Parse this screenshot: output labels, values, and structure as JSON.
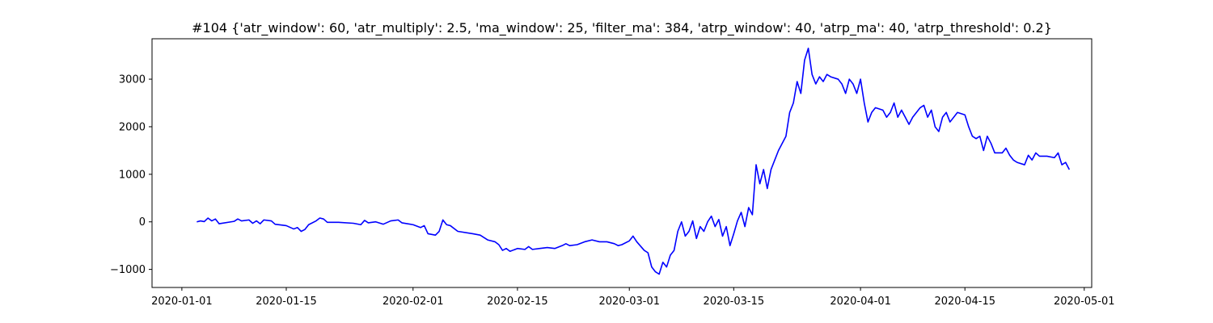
{
  "chart_data": {
    "type": "line",
    "title": "#104 {'atr_window': 60, 'atr_multiply': 2.5, 'ma_window': 25, 'filter_ma': 384, 'atrp_window': 40, 'atrp_ma': 40, 'atrp_threshold': 0.2}",
    "xlabel": "",
    "ylabel": "",
    "grid": false,
    "legend": "none",
    "xlim": [
      "2019-12-28",
      "2020-05-02"
    ],
    "ylim": [
      -1380,
      3850
    ],
    "x_ticks": [
      "2020-01-01",
      "2020-01-15",
      "2020-02-01",
      "2020-02-15",
      "2020-03-01",
      "2020-03-15",
      "2020-04-01",
      "2020-04-15",
      "2020-05-01"
    ],
    "y_ticks": [
      -1000,
      0,
      1000,
      2000,
      3000
    ],
    "series": [
      {
        "color": "#0000ff",
        "points": [
          [
            "2020-01-03",
            0
          ],
          [
            "2020-01-03T12:00",
            20
          ],
          [
            "2020-01-04",
            5
          ],
          [
            "2020-01-04T12:00",
            80
          ],
          [
            "2020-01-05",
            20
          ],
          [
            "2020-01-05T12:00",
            60
          ],
          [
            "2020-01-06",
            -40
          ],
          [
            "2020-01-08",
            10
          ],
          [
            "2020-01-08T12:00",
            60
          ],
          [
            "2020-01-09",
            20
          ],
          [
            "2020-01-10",
            40
          ],
          [
            "2020-01-10T12:00",
            -30
          ],
          [
            "2020-01-11",
            20
          ],
          [
            "2020-01-11T12:00",
            -40
          ],
          [
            "2020-01-12",
            40
          ],
          [
            "2020-01-13",
            20
          ],
          [
            "2020-01-13T12:00",
            -50
          ],
          [
            "2020-01-15",
            -80
          ],
          [
            "2020-01-16",
            -150
          ],
          [
            "2020-01-16T12:00",
            -120
          ],
          [
            "2020-01-17",
            -200
          ],
          [
            "2020-01-17T12:00",
            -160
          ],
          [
            "2020-01-18",
            -60
          ],
          [
            "2020-01-19",
            20
          ],
          [
            "2020-01-19T12:00",
            80
          ],
          [
            "2020-01-20",
            60
          ],
          [
            "2020-01-20T12:00",
            -10
          ],
          [
            "2020-01-22",
            -10
          ],
          [
            "2020-01-24",
            -30
          ],
          [
            "2020-01-25",
            -60
          ],
          [
            "2020-01-25T12:00",
            30
          ],
          [
            "2020-01-26",
            -20
          ],
          [
            "2020-01-27",
            0
          ],
          [
            "2020-01-28",
            -50
          ],
          [
            "2020-01-29",
            20
          ],
          [
            "2020-01-30",
            40
          ],
          [
            "2020-01-30T12:00",
            -20
          ],
          [
            "2020-02-01",
            -60
          ],
          [
            "2020-02-02",
            -120
          ],
          [
            "2020-02-02T12:00",
            -80
          ],
          [
            "2020-02-03",
            -250
          ],
          [
            "2020-02-04",
            -280
          ],
          [
            "2020-02-04T12:00",
            -200
          ],
          [
            "2020-02-05",
            40
          ],
          [
            "2020-02-05T12:00",
            -60
          ],
          [
            "2020-02-06",
            -80
          ],
          [
            "2020-02-07",
            -200
          ],
          [
            "2020-02-09",
            -250
          ],
          [
            "2020-02-10",
            -280
          ],
          [
            "2020-02-11",
            -380
          ],
          [
            "2020-02-12",
            -420
          ],
          [
            "2020-02-12T12:00",
            -480
          ],
          [
            "2020-02-13",
            -600
          ],
          [
            "2020-02-13T12:00",
            -560
          ],
          [
            "2020-02-14",
            -620
          ],
          [
            "2020-02-15",
            -560
          ],
          [
            "2020-02-16",
            -580
          ],
          [
            "2020-02-16T12:00",
            -520
          ],
          [
            "2020-02-17",
            -580
          ],
          [
            "2020-02-18",
            -560
          ],
          [
            "2020-02-19",
            -540
          ],
          [
            "2020-02-20",
            -560
          ],
          [
            "2020-02-21",
            -500
          ],
          [
            "2020-02-21T12:00",
            -460
          ],
          [
            "2020-02-22",
            -500
          ],
          [
            "2020-02-23",
            -480
          ],
          [
            "2020-02-24",
            -420
          ],
          [
            "2020-02-25",
            -380
          ],
          [
            "2020-02-26",
            -420
          ],
          [
            "2020-02-27",
            -420
          ],
          [
            "2020-02-28",
            -460
          ],
          [
            "2020-02-28T12:00",
            -500
          ],
          [
            "2020-02-29",
            -480
          ],
          [
            "2020-03-01",
            -400
          ],
          [
            "2020-03-01T12:00",
            -300
          ],
          [
            "2020-03-02",
            -420
          ],
          [
            "2020-03-03",
            -600
          ],
          [
            "2020-03-03T12:00",
            -650
          ],
          [
            "2020-03-04",
            -950
          ],
          [
            "2020-03-04T12:00",
            -1050
          ],
          [
            "2020-03-05",
            -1100
          ],
          [
            "2020-03-05T12:00",
            -850
          ],
          [
            "2020-03-06",
            -950
          ],
          [
            "2020-03-06T12:00",
            -700
          ],
          [
            "2020-03-07",
            -600
          ],
          [
            "2020-03-07T12:00",
            -200
          ],
          [
            "2020-03-08",
            0
          ],
          [
            "2020-03-08T12:00",
            -300
          ],
          [
            "2020-03-09",
            -200
          ],
          [
            "2020-03-09T12:00",
            20
          ],
          [
            "2020-03-10",
            -350
          ],
          [
            "2020-03-10T12:00",
            -100
          ],
          [
            "2020-03-11",
            -200
          ],
          [
            "2020-03-11T12:00",
            0
          ],
          [
            "2020-03-12",
            120
          ],
          [
            "2020-03-12T12:00",
            -100
          ],
          [
            "2020-03-13",
            50
          ],
          [
            "2020-03-13T12:00",
            -300
          ],
          [
            "2020-03-14",
            -100
          ],
          [
            "2020-03-14T12:00",
            -500
          ],
          [
            "2020-03-15",
            -250
          ],
          [
            "2020-03-15T12:00",
            20
          ],
          [
            "2020-03-16",
            200
          ],
          [
            "2020-03-16T12:00",
            -100
          ],
          [
            "2020-03-17",
            300
          ],
          [
            "2020-03-17T12:00",
            150
          ],
          [
            "2020-03-18",
            1200
          ],
          [
            "2020-03-18T12:00",
            800
          ],
          [
            "2020-03-19",
            1100
          ],
          [
            "2020-03-19T12:00",
            700
          ],
          [
            "2020-03-20",
            1100
          ],
          [
            "2020-03-21",
            1500
          ],
          [
            "2020-03-22",
            1800
          ],
          [
            "2020-03-22T12:00",
            2300
          ],
          [
            "2020-03-23",
            2500
          ],
          [
            "2020-03-23T12:00",
            2950
          ],
          [
            "2020-03-24",
            2700
          ],
          [
            "2020-03-24T12:00",
            3400
          ],
          [
            "2020-03-25",
            3650
          ],
          [
            "2020-03-25T12:00",
            3100
          ],
          [
            "2020-03-26",
            2900
          ],
          [
            "2020-03-26T12:00",
            3050
          ],
          [
            "2020-03-27",
            2950
          ],
          [
            "2020-03-27T12:00",
            3100
          ],
          [
            "2020-03-28",
            3050
          ],
          [
            "2020-03-29",
            3000
          ],
          [
            "2020-03-29T12:00",
            2900
          ],
          [
            "2020-03-30",
            2700
          ],
          [
            "2020-03-30T12:00",
            3000
          ],
          [
            "2020-03-31",
            2900
          ],
          [
            "2020-03-31T12:00",
            2700
          ],
          [
            "2020-04-01",
            3000
          ],
          [
            "2020-04-01T12:00",
            2500
          ],
          [
            "2020-04-02",
            2100
          ],
          [
            "2020-04-02T12:00",
            2300
          ],
          [
            "2020-04-03",
            2400
          ],
          [
            "2020-04-04",
            2350
          ],
          [
            "2020-04-04T12:00",
            2200
          ],
          [
            "2020-04-05",
            2300
          ],
          [
            "2020-04-05T12:00",
            2500
          ],
          [
            "2020-04-06",
            2200
          ],
          [
            "2020-04-06T12:00",
            2350
          ],
          [
            "2020-04-07",
            2200
          ],
          [
            "2020-04-07T12:00",
            2050
          ],
          [
            "2020-04-08",
            2200
          ],
          [
            "2020-04-08T12:00",
            2300
          ],
          [
            "2020-04-09",
            2400
          ],
          [
            "2020-04-09T12:00",
            2450
          ],
          [
            "2020-04-10",
            2200
          ],
          [
            "2020-04-10T12:00",
            2350
          ],
          [
            "2020-04-11",
            2000
          ],
          [
            "2020-04-11T12:00",
            1900
          ],
          [
            "2020-04-12",
            2200
          ],
          [
            "2020-04-12T12:00",
            2300
          ],
          [
            "2020-04-13",
            2100
          ],
          [
            "2020-04-14",
            2300
          ],
          [
            "2020-04-15",
            2250
          ],
          [
            "2020-04-15T12:00",
            2000
          ],
          [
            "2020-04-16",
            1800
          ],
          [
            "2020-04-16T12:00",
            1750
          ],
          [
            "2020-04-17",
            1800
          ],
          [
            "2020-04-17T12:00",
            1500
          ],
          [
            "2020-04-18",
            1800
          ],
          [
            "2020-04-18T12:00",
            1650
          ],
          [
            "2020-04-19",
            1450
          ],
          [
            "2020-04-20",
            1450
          ],
          [
            "2020-04-20T12:00",
            1550
          ],
          [
            "2020-04-21",
            1400
          ],
          [
            "2020-04-21T12:00",
            1300
          ],
          [
            "2020-04-22",
            1250
          ],
          [
            "2020-04-23",
            1200
          ],
          [
            "2020-04-23T12:00",
            1400
          ],
          [
            "2020-04-24",
            1300
          ],
          [
            "2020-04-24T12:00",
            1450
          ],
          [
            "2020-04-25",
            1380
          ],
          [
            "2020-04-26",
            1380
          ],
          [
            "2020-04-27",
            1350
          ],
          [
            "2020-04-27T12:00",
            1450
          ],
          [
            "2020-04-28",
            1200
          ],
          [
            "2020-04-28T12:00",
            1250
          ],
          [
            "2020-04-29",
            1100
          ]
        ]
      }
    ]
  }
}
